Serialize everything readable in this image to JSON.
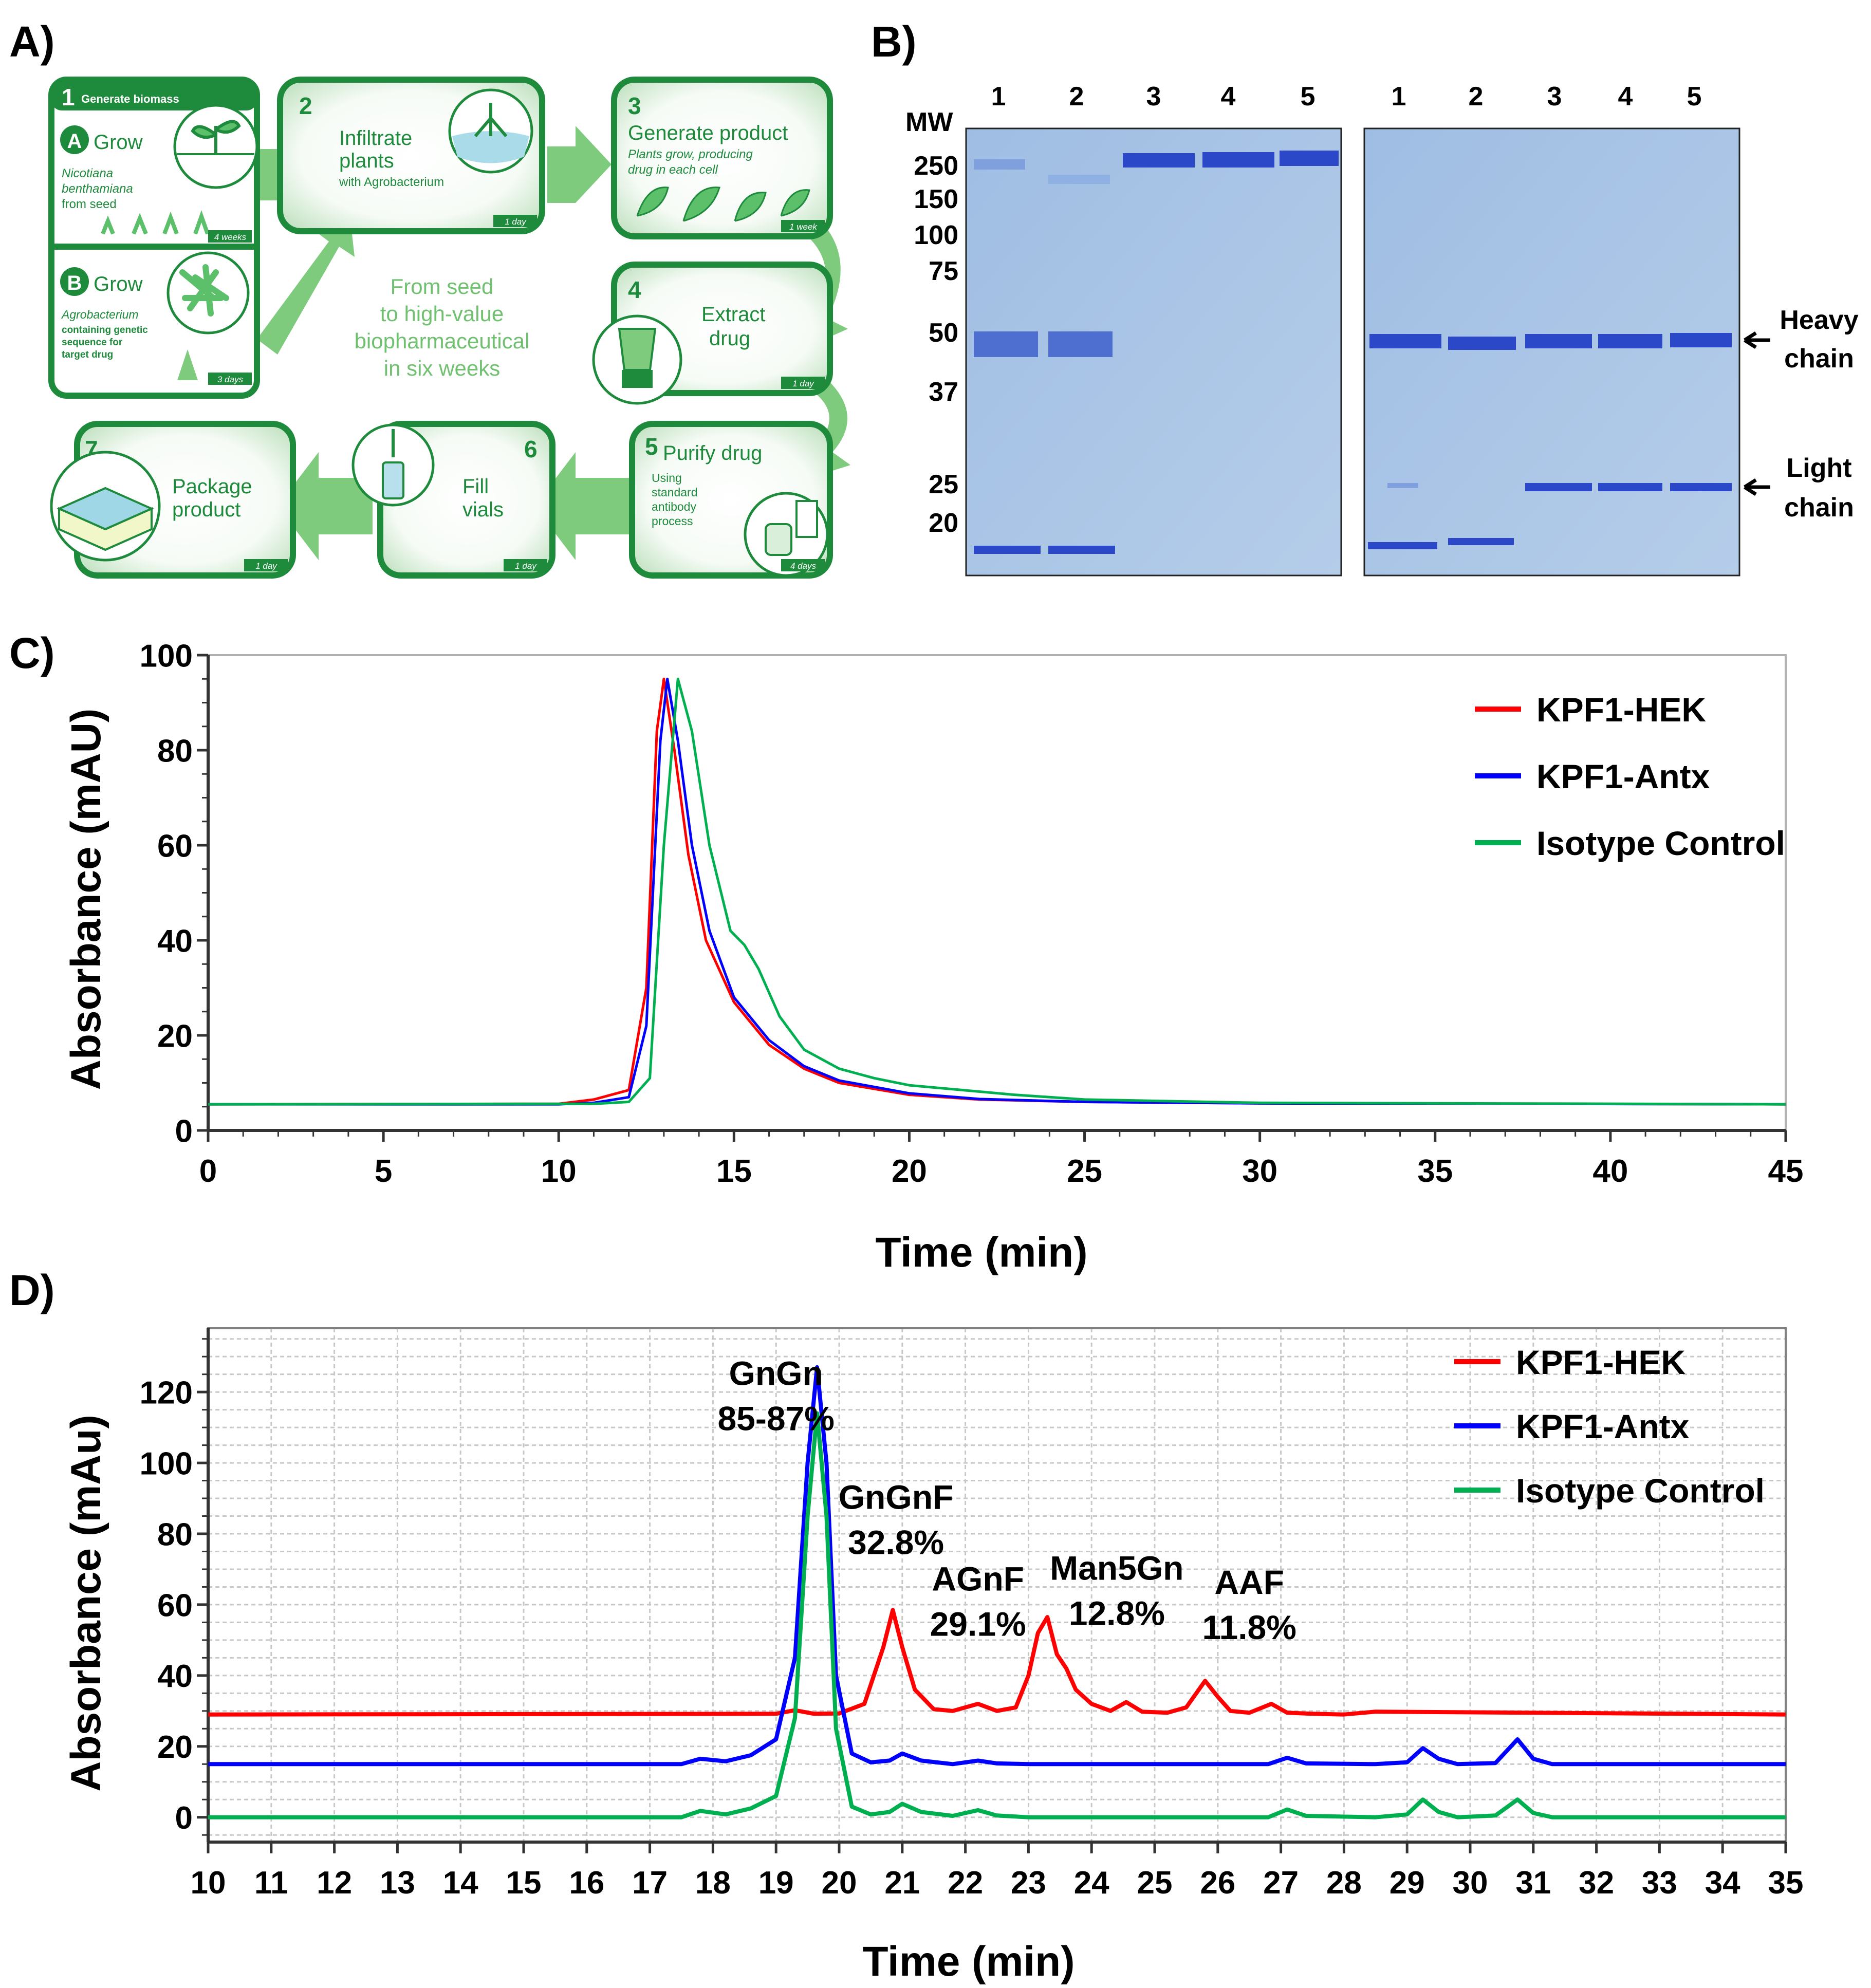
{
  "panels": {
    "a": {
      "label": "A)"
    },
    "b": {
      "label": "B)"
    },
    "c": {
      "label": "C)"
    },
    "d": {
      "label": "D)"
    }
  },
  "colors": {
    "green_dark": "#1e8a3c",
    "green_mid": "#5cbf6a",
    "green_light": "#d9efd9",
    "series_red": "#ff0000",
    "series_blue": "#0000ff",
    "series_green": "#00b050",
    "gel_bg": "#a9c4e4",
    "band": "#2a48c8"
  },
  "workflow": {
    "tagline": [
      "From seed",
      "to high-value",
      "biopharmaceutical",
      "in six weeks"
    ],
    "steps": [
      {
        "num": "1",
        "title": "Generate biomass"
      },
      {
        "num": "A",
        "title": "Grow",
        "desc": [
          "Nicotiana",
          "benthamiana",
          "from seed"
        ],
        "duration": "4 weeks"
      },
      {
        "num": "B",
        "title": "Grow",
        "desc": [
          "Agrobacterium",
          "containing genetic",
          "sequence for",
          "target drug"
        ],
        "duration": "3 days"
      },
      {
        "num": "2",
        "title": [
          "Infiltrate",
          "plants"
        ],
        "desc": [
          "with Agrobacterium"
        ],
        "duration": "1 day"
      },
      {
        "num": "3",
        "title": [
          "Generate product"
        ],
        "desc": [
          "Plants grow, producing",
          "drug in each cell"
        ],
        "duration": "1 week"
      },
      {
        "num": "4",
        "title": [
          "Extract",
          "drug"
        ],
        "desc": [],
        "duration": "1 day"
      },
      {
        "num": "5",
        "title": [
          "Purify drug"
        ],
        "desc": [
          "Using",
          "standard",
          "antibody",
          "process"
        ],
        "duration": "4 days"
      },
      {
        "num": "6",
        "title": [
          "Fill",
          "vials"
        ],
        "desc": [],
        "duration": "1 day"
      },
      {
        "num": "7",
        "title": [
          "Package",
          "product"
        ],
        "desc": [],
        "duration": "1 day"
      }
    ]
  },
  "gel": {
    "mw_title": "MW",
    "markers": [
      "250",
      "150",
      "100",
      "75",
      "50",
      "37",
      "25",
      "20"
    ],
    "lanes": [
      "1",
      "2",
      "3",
      "4",
      "5"
    ],
    "right_labels": [
      [
        "Heavy",
        "chain"
      ],
      [
        "Light",
        "chain"
      ]
    ]
  },
  "chart_data": [
    {
      "panel": "C",
      "type": "line",
      "title": "",
      "xlabel": "Time (min)",
      "ylabel": "Absorbance (mAU)",
      "xlim": [
        0,
        45
      ],
      "ylim": [
        0,
        100
      ],
      "xticks": [
        0,
        5,
        10,
        15,
        20,
        25,
        30,
        35,
        40,
        45
      ],
      "yticks": [
        0,
        20,
        40,
        60,
        80,
        100
      ],
      "grid": false,
      "legend": "top-right",
      "series": [
        {
          "name": "KPF1-HEK",
          "color": "#ff0000",
          "x": [
            0,
            10,
            11,
            12,
            12.5,
            12.8,
            13.0,
            13.3,
            13.7,
            14.2,
            15.0,
            16.0,
            17.0,
            18.0,
            20.0,
            22.0,
            25.0,
            30.0,
            45.0
          ],
          "y": [
            5.5,
            5.6,
            6.5,
            8.5,
            30,
            84,
            95,
            80,
            58,
            40,
            27,
            18,
            13,
            10,
            7.5,
            6.5,
            6.0,
            5.7,
            5.5
          ]
        },
        {
          "name": "KPF1-Antx",
          "color": "#0000ff",
          "x": [
            0,
            10,
            11,
            12,
            12.5,
            12.9,
            13.1,
            13.4,
            13.8,
            14.3,
            15.0,
            16.0,
            17.0,
            18.0,
            20.0,
            22.0,
            25.0,
            30.0,
            45.0
          ],
          "y": [
            5.5,
            5.5,
            5.8,
            7.0,
            22,
            82,
            95,
            82,
            60,
            42,
            28,
            19,
            13.5,
            10.5,
            7.8,
            6.6,
            6.0,
            5.7,
            5.5
          ]
        },
        {
          "name": "Isotype Control",
          "color": "#00b050",
          "x": [
            0,
            11,
            12,
            12.6,
            13.0,
            13.4,
            13.8,
            14.3,
            14.9,
            15.3,
            15.7,
            16.3,
            17.0,
            18.0,
            19.0,
            20.0,
            21.5,
            23.0,
            25.0,
            30.0,
            45.0
          ],
          "y": [
            5.5,
            5.6,
            6.0,
            11,
            60,
            95,
            84,
            60,
            42,
            39,
            34,
            24,
            17,
            13,
            11,
            9.5,
            8.5,
            7.5,
            6.5,
            5.8,
            5.5
          ]
        }
      ]
    },
    {
      "panel": "D",
      "type": "line",
      "title": "",
      "xlabel": "Time (min)",
      "ylabel": "Absorbance (mAu)",
      "xlim": [
        10,
        35
      ],
      "ylim": [
        -7,
        138
      ],
      "xticks": [
        10,
        11,
        12,
        13,
        14,
        15,
        16,
        17,
        18,
        19,
        20,
        21,
        22,
        23,
        24,
        25,
        26,
        27,
        28,
        29,
        30,
        31,
        32,
        33,
        34,
        35
      ],
      "yticks": [
        0,
        20,
        40,
        60,
        80,
        100,
        120
      ],
      "grid": true,
      "legend": "top-right",
      "series": [
        {
          "name": "KPF1-HEK",
          "color": "#ff0000",
          "x": [
            10,
            19.0,
            19.3,
            19.6,
            20.0,
            20.4,
            20.7,
            20.85,
            21.0,
            21.2,
            21.5,
            21.8,
            22.2,
            22.5,
            22.8,
            23.0,
            23.15,
            23.3,
            23.45,
            23.6,
            23.75,
            24.0,
            24.3,
            24.55,
            24.8,
            25.2,
            25.5,
            25.8,
            26.0,
            26.2,
            26.5,
            26.85,
            27.1,
            27.5,
            28.0,
            28.5,
            35
          ],
          "y": [
            29,
            29.2,
            30.2,
            29.2,
            29.3,
            32,
            48,
            58.5,
            48,
            36,
            30.5,
            30,
            32,
            30,
            31,
            40,
            52,
            56.5,
            46,
            42,
            36,
            32,
            30,
            32.5,
            29.8,
            29.5,
            31,
            38.5,
            34,
            30,
            29.5,
            32,
            29.5,
            29.2,
            29,
            29.8,
            29
          ]
        },
        {
          "name": "KPF1-Antx",
          "color": "#0000ff",
          "x": [
            10,
            17.5,
            17.8,
            18.2,
            18.6,
            19.0,
            19.3,
            19.5,
            19.65,
            19.8,
            19.95,
            20.2,
            20.5,
            20.8,
            21.0,
            21.3,
            21.8,
            22.2,
            22.5,
            23.0,
            24.0,
            25.0,
            26.8,
            27.1,
            27.4,
            28.5,
            29.0,
            29.25,
            29.5,
            29.8,
            30.4,
            30.75,
            31.0,
            31.3,
            32.0,
            35
          ],
          "y": [
            15,
            15,
            16.5,
            15.8,
            17.5,
            22,
            45,
            100,
            127,
            100,
            40,
            18,
            15.5,
            16,
            18,
            16,
            15,
            16,
            15.2,
            15,
            15,
            15,
            15,
            16.8,
            15.2,
            15,
            15.5,
            19.5,
            16.5,
            15,
            15.3,
            22,
            16.5,
            15,
            15,
            15
          ]
        },
        {
          "name": "Isotype Control",
          "color": "#00b050",
          "x": [
            10,
            17.5,
            17.8,
            18.2,
            18.6,
            19.0,
            19.3,
            19.5,
            19.65,
            19.8,
            19.95,
            20.2,
            20.5,
            20.8,
            21.0,
            21.3,
            21.8,
            22.2,
            22.5,
            23.0,
            24.0,
            25.0,
            26.8,
            27.1,
            27.4,
            28.5,
            29.0,
            29.25,
            29.5,
            29.8,
            30.4,
            30.75,
            31.0,
            31.3,
            32.0,
            35
          ],
          "y": [
            0,
            0,
            1.8,
            0.8,
            2.5,
            6,
            28,
            85,
            114,
            85,
            25,
            3,
            0.8,
            1.5,
            3.8,
            1.5,
            0.4,
            2,
            0.5,
            0,
            0,
            0,
            0,
            2.2,
            0.4,
            0,
            0.8,
            5,
            1.5,
            0,
            0.5,
            5,
            1.2,
            0,
            0,
            0
          ]
        }
      ],
      "annotations": [
        {
          "text": [
            "GnGn",
            "85-87%"
          ],
          "x": 19.0,
          "y": 122
        },
        {
          "text": [
            "GnGnF",
            "32.8%"
          ],
          "x": 20.9,
          "y": 87
        },
        {
          "text": [
            "AGnF",
            "29.1%"
          ],
          "x": 22.2,
          "y": 64
        },
        {
          "text": [
            "Man5Gn",
            "12.8%"
          ],
          "x": 24.4,
          "y": 67
        },
        {
          "text": [
            "AAF",
            "11.8%"
          ],
          "x": 26.5,
          "y": 63
        }
      ]
    }
  ]
}
